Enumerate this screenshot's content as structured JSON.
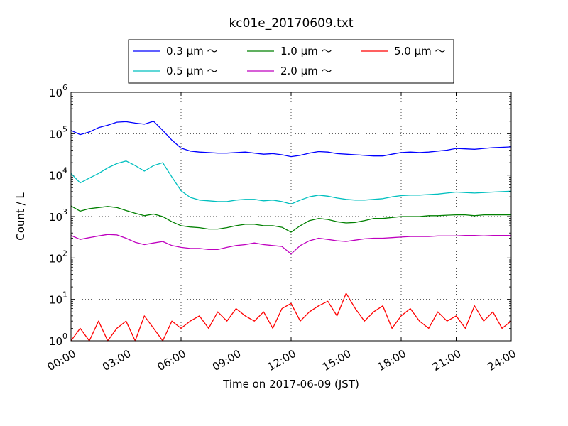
{
  "chart_data": {
    "type": "line",
    "title": "kc01e_20170609.txt",
    "xlabel": "Time on 2017-06-09 (JST)",
    "ylabel": "Count / L",
    "yscale": "log",
    "xlim": [
      "00:00",
      "24:00"
    ],
    "ylim": [
      1,
      1000000
    ],
    "grid": true,
    "legend_position": "top-center",
    "x_ticks": [
      "00:00",
      "03:00",
      "06:00",
      "09:00",
      "12:00",
      "15:00",
      "18:00",
      "21:00",
      "24:00"
    ],
    "y_ticks": [
      {
        "value": 1,
        "base": "10",
        "exp": "0"
      },
      {
        "value": 10,
        "base": "10",
        "exp": "1"
      },
      {
        "value": 100,
        "base": "10",
        "exp": "2"
      },
      {
        "value": 1000,
        "base": "10",
        "exp": "3"
      },
      {
        "value": 10000,
        "base": "10",
        "exp": "4"
      },
      {
        "value": 100000,
        "base": "10",
        "exp": "5"
      },
      {
        "value": 1000000,
        "base": "10",
        "exp": "6"
      }
    ],
    "x": [
      "00:00",
      "00:30",
      "01:00",
      "01:30",
      "02:00",
      "02:30",
      "03:00",
      "03:30",
      "04:00",
      "04:30",
      "05:00",
      "05:30",
      "06:00",
      "06:30",
      "07:00",
      "07:30",
      "08:00",
      "08:30",
      "09:00",
      "09:30",
      "10:00",
      "10:30",
      "11:00",
      "11:30",
      "12:00",
      "12:30",
      "13:00",
      "13:30",
      "14:00",
      "14:30",
      "15:00",
      "15:30",
      "16:00",
      "16:30",
      "17:00",
      "17:30",
      "18:00",
      "18:30",
      "19:00",
      "19:30",
      "20:00",
      "20:30",
      "21:00",
      "21:30",
      "22:00",
      "22:30",
      "23:00",
      "23:30",
      "24:00"
    ],
    "series": [
      {
        "name": "0.3 μm ～",
        "color": "#0000ff",
        "values": [
          120000,
          95000,
          110000,
          140000,
          160000,
          190000,
          195000,
          180000,
          170000,
          200000,
          120000,
          70000,
          45000,
          38000,
          36000,
          35000,
          34000,
          34000,
          35000,
          36000,
          34000,
          32000,
          33000,
          31000,
          28000,
          30000,
          34000,
          37000,
          36000,
          33000,
          32000,
          31000,
          30000,
          29000,
          29000,
          32000,
          35000,
          36000,
          35000,
          36000,
          38000,
          40000,
          44000,
          43000,
          42000,
          44000,
          46000,
          47000,
          48000
        ]
      },
      {
        "name": "0.5 μm ～",
        "color": "#00bfbf",
        "values": [
          11000,
          6500,
          8500,
          11000,
          15000,
          19000,
          22000,
          17000,
          12500,
          17000,
          20000,
          9000,
          4200,
          2900,
          2500,
          2400,
          2300,
          2300,
          2500,
          2600,
          2600,
          2400,
          2500,
          2300,
          2000,
          2500,
          3000,
          3300,
          3100,
          2800,
          2600,
          2500,
          2500,
          2600,
          2700,
          3000,
          3200,
          3300,
          3300,
          3400,
          3500,
          3700,
          3900,
          3800,
          3700,
          3800,
          3900,
          4000,
          4100
        ]
      },
      {
        "name": "1.0 μm ～",
        "color": "#008000",
        "values": [
          1800,
          1350,
          1550,
          1650,
          1750,
          1650,
          1400,
          1200,
          1050,
          1150,
          1000,
          750,
          600,
          560,
          540,
          500,
          500,
          540,
          600,
          650,
          650,
          600,
          600,
          550,
          420,
          600,
          800,
          900,
          850,
          750,
          700,
          720,
          800,
          900,
          900,
          950,
          1000,
          1000,
          1000,
          1050,
          1050,
          1080,
          1100,
          1100,
          1050,
          1100,
          1100,
          1100,
          1100
        ]
      },
      {
        "name": "2.0 μm ～",
        "color": "#bf00bf",
        "values": [
          350,
          280,
          310,
          340,
          370,
          360,
          300,
          240,
          210,
          230,
          250,
          200,
          180,
          170,
          170,
          160,
          160,
          180,
          200,
          210,
          230,
          210,
          200,
          190,
          125,
          200,
          260,
          300,
          280,
          260,
          250,
          270,
          290,
          300,
          300,
          310,
          320,
          330,
          330,
          330,
          340,
          340,
          340,
          350,
          350,
          340,
          350,
          350,
          350
        ]
      },
      {
        "name": "5.0 μm ～",
        "color": "#ff0000",
        "values": [
          1,
          2,
          1,
          3,
          1,
          2,
          3,
          1,
          4,
          2,
          1,
          3,
          2,
          3,
          4,
          2,
          5,
          3,
          6,
          4,
          3,
          5,
          2,
          6,
          8,
          3,
          5,
          7,
          9,
          4,
          14,
          6,
          3,
          5,
          7,
          2,
          4,
          6,
          3,
          2,
          5,
          3,
          4,
          2,
          7,
          3,
          5,
          2,
          3
        ]
      }
    ]
  }
}
